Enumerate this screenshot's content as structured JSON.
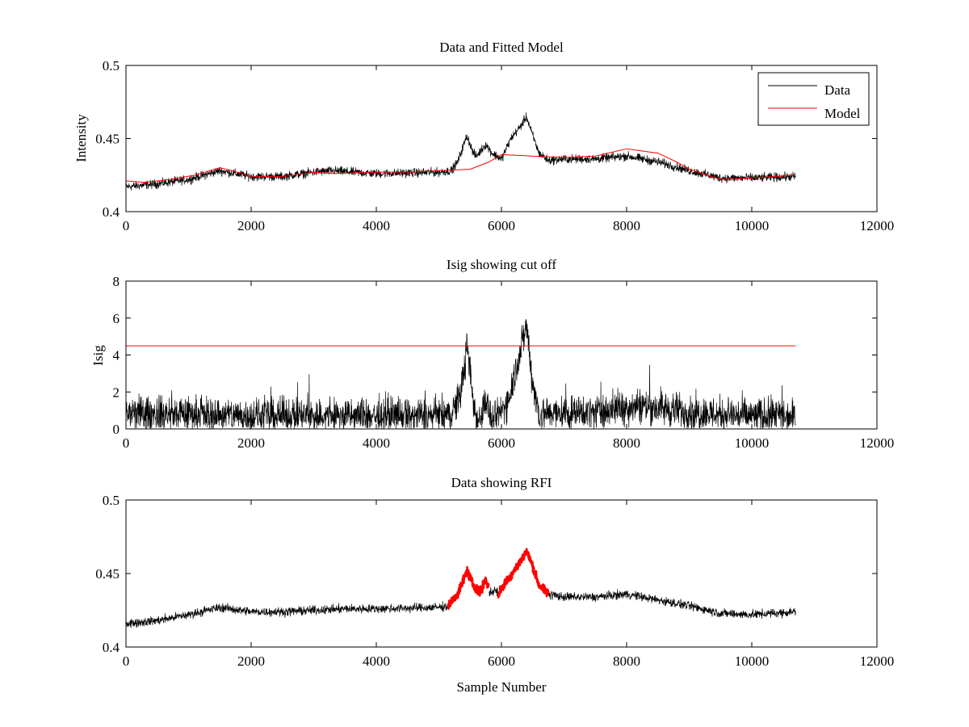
{
  "chart_data": [
    {
      "type": "line",
      "title": "Data and Fitted Model",
      "xlabel": "",
      "ylabel": "Intensity",
      "xlim": [
        0,
        12000
      ],
      "ylim": [
        0.4,
        0.5
      ],
      "xticks": [
        0,
        2000,
        4000,
        6000,
        8000,
        10000,
        12000
      ],
      "xtick_labels": [
        "0",
        "2000",
        "4000",
        "6000",
        "8000",
        "10000",
        "12000"
      ],
      "yticks": [
        0.4,
        0.45,
        0.5
      ],
      "ytick_labels": [
        "0.4",
        "0.45",
        "0.5"
      ],
      "grid": false,
      "legend": {
        "placement": "top-right",
        "entries": [
          "Data",
          "Model"
        ]
      },
      "series": [
        {
          "name": "Data",
          "color": "#000000",
          "style": "noisy-line",
          "x_range": [
            0,
            10700
          ],
          "noise_amplitude": 0.0045,
          "envelope": [
            [
              0,
              0.417
            ],
            [
              500,
              0.419
            ],
            [
              1000,
              0.422
            ],
            [
              1500,
              0.428
            ],
            [
              2000,
              0.424
            ],
            [
              2500,
              0.424
            ],
            [
              3000,
              0.427
            ],
            [
              3300,
              0.428
            ],
            [
              4000,
              0.426
            ],
            [
              5000,
              0.427
            ],
            [
              5200,
              0.428
            ],
            [
              5300,
              0.434
            ],
            [
              5450,
              0.452
            ],
            [
              5550,
              0.44
            ],
            [
              5600,
              0.438
            ],
            [
              5750,
              0.446
            ],
            [
              5850,
              0.44
            ],
            [
              6000,
              0.436
            ],
            [
              6150,
              0.45
            ],
            [
              6300,
              0.458
            ],
            [
              6400,
              0.465
            ],
            [
              6500,
              0.452
            ],
            [
              6600,
              0.44
            ],
            [
              6750,
              0.435
            ],
            [
              7000,
              0.436
            ],
            [
              7500,
              0.436
            ],
            [
              8000,
              0.438
            ],
            [
              8500,
              0.434
            ],
            [
              9000,
              0.428
            ],
            [
              9500,
              0.423
            ],
            [
              10000,
              0.423
            ],
            [
              10700,
              0.424
            ]
          ]
        },
        {
          "name": "Model",
          "color": "#ff0000",
          "style": "line",
          "points": [
            [
              0,
              0.421
            ],
            [
              300,
              0.42
            ],
            [
              700,
              0.422
            ],
            [
              1100,
              0.425
            ],
            [
              1500,
              0.43
            ],
            [
              1700,
              0.428
            ],
            [
              2000,
              0.424
            ],
            [
              2500,
              0.424
            ],
            [
              3000,
              0.427
            ],
            [
              3300,
              0.426
            ],
            [
              4000,
              0.427
            ],
            [
              4500,
              0.427
            ],
            [
              5000,
              0.428
            ],
            [
              5500,
              0.429
            ],
            [
              5800,
              0.434
            ],
            [
              6000,
              0.439
            ],
            [
              6500,
              0.438
            ],
            [
              7000,
              0.437
            ],
            [
              7500,
              0.438
            ],
            [
              8000,
              0.443
            ],
            [
              8500,
              0.44
            ],
            [
              8800,
              0.434
            ],
            [
              9000,
              0.429
            ],
            [
              9500,
              0.422
            ],
            [
              10000,
              0.423
            ],
            [
              10700,
              0.425
            ]
          ]
        }
      ]
    },
    {
      "type": "line",
      "title": "Isig showing cut off",
      "xlabel": "",
      "ylabel": "Isig",
      "xlim": [
        0,
        12000
      ],
      "ylim": [
        0,
        8
      ],
      "xticks": [
        0,
        2000,
        4000,
        6000,
        8000,
        10000,
        12000
      ],
      "xtick_labels": [
        "0",
        "2000",
        "4000",
        "6000",
        "8000",
        "10000",
        "12000"
      ],
      "yticks": [
        0,
        2,
        4,
        6,
        8
      ],
      "ytick_labels": [
        "0",
        "2",
        "4",
        "6",
        "8"
      ],
      "grid": false,
      "series": [
        {
          "color": "#000000",
          "style": "noisy-nonneg-line",
          "x_range": [
            0,
            10700
          ],
          "noise_amplitude": 0.9,
          "envelope": [
            [
              0,
              0.8
            ],
            [
              1000,
              0.8
            ],
            [
              2000,
              0.7
            ],
            [
              4000,
              0.7
            ],
            [
              5200,
              0.7
            ],
            [
              5350,
              2.0
            ],
            [
              5450,
              4.4
            ],
            [
              5550,
              1.5
            ],
            [
              5620,
              0.2
            ],
            [
              5750,
              1.6
            ],
            [
              5850,
              0.2
            ],
            [
              6100,
              1.5
            ],
            [
              6250,
              3.5
            ],
            [
              6400,
              5.6
            ],
            [
              6500,
              2.5
            ],
            [
              6600,
              0.8
            ],
            [
              7500,
              0.9
            ],
            [
              8200,
              1.3
            ],
            [
              9000,
              0.9
            ],
            [
              10000,
              0.7
            ],
            [
              10700,
              0.7
            ]
          ]
        },
        {
          "color": "#ff0000",
          "style": "line",
          "points": [
            [
              0,
              4.5
            ],
            [
              10700,
              4.5
            ]
          ]
        }
      ]
    },
    {
      "type": "line",
      "title": "Data showing RFI",
      "xlabel": "Sample Number",
      "ylabel": "",
      "xlim": [
        0,
        12000
      ],
      "ylim": [
        0.4,
        0.5
      ],
      "xticks": [
        0,
        2000,
        4000,
        6000,
        8000,
        10000,
        12000
      ],
      "xtick_labels": [
        "0",
        "2000",
        "4000",
        "6000",
        "8000",
        "10000",
        "12000"
      ],
      "yticks": [
        0.4,
        0.45,
        0.5
      ],
      "ytick_labels": [
        "0.4",
        "0.45",
        "0.5"
      ],
      "grid": false,
      "series": [
        {
          "color": "#000000",
          "style": "noisy-line",
          "x_range": [
            0,
            10700
          ],
          "exclude_ranges": [
            [
              5150,
              5800
            ],
            [
              5950,
              6750
            ]
          ],
          "noise_amplitude": 0.0045,
          "envelope": [
            [
              0,
              0.416
            ],
            [
              500,
              0.418
            ],
            [
              1000,
              0.422
            ],
            [
              1500,
              0.427
            ],
            [
              2000,
              0.424
            ],
            [
              2500,
              0.424
            ],
            [
              3000,
              0.425
            ],
            [
              3500,
              0.426
            ],
            [
              4000,
              0.426
            ],
            [
              5000,
              0.427
            ],
            [
              5150,
              0.428
            ],
            [
              5800,
              0.437
            ],
            [
              5900,
              0.438
            ],
            [
              5950,
              0.437
            ],
            [
              6750,
              0.436
            ],
            [
              7000,
              0.434
            ],
            [
              7500,
              0.434
            ],
            [
              8000,
              0.436
            ],
            [
              8500,
              0.432
            ],
            [
              9000,
              0.428
            ],
            [
              9500,
              0.423
            ],
            [
              10000,
              0.422
            ],
            [
              10700,
              0.424
            ]
          ]
        },
        {
          "color": "#ff0000",
          "style": "noisy-markers",
          "x_ranges": [
            [
              5150,
              5800
            ],
            [
              5950,
              6750
            ]
          ],
          "noise_amplitude": 0.0045,
          "envelope": [
            [
              5150,
              0.428
            ],
            [
              5300,
              0.436
            ],
            [
              5450,
              0.452
            ],
            [
              5550,
              0.442
            ],
            [
              5650,
              0.437
            ],
            [
              5750,
              0.446
            ],
            [
              5800,
              0.44
            ],
            [
              5950,
              0.436
            ],
            [
              6100,
              0.446
            ],
            [
              6250,
              0.455
            ],
            [
              6400,
              0.465
            ],
            [
              6500,
              0.455
            ],
            [
              6600,
              0.442
            ],
            [
              6750,
              0.436
            ]
          ]
        }
      ]
    }
  ]
}
